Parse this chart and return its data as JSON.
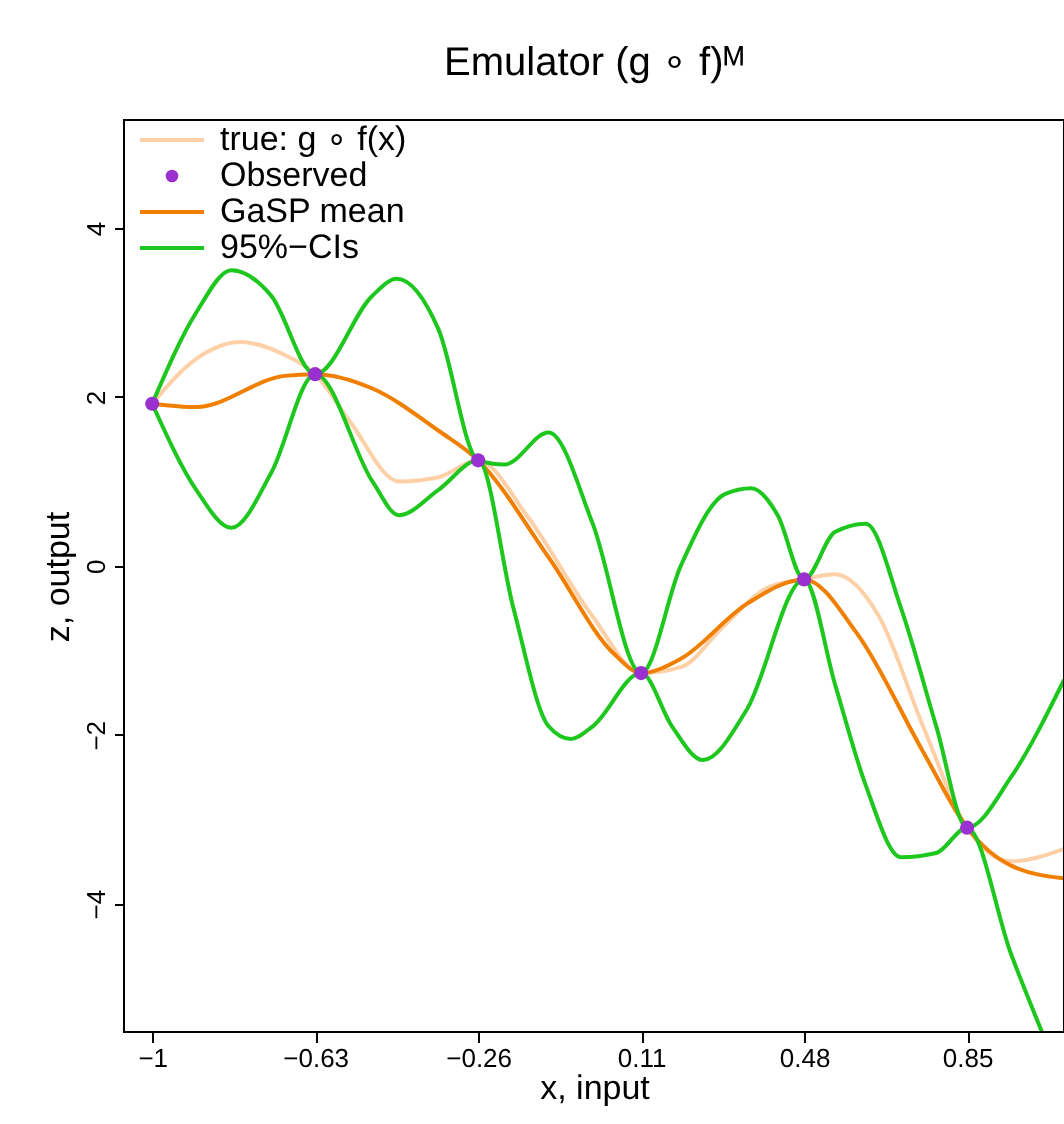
{
  "chart_data": {
    "type": "line",
    "title": "Emulator (g ∘ f)ᴹ",
    "xlabel": "x, input",
    "ylabel": "z, output",
    "xlim": [
      -1.064,
      1.07
    ],
    "ylim": [
      -5.52,
      5.28
    ],
    "xticks": [
      -1,
      -0.63,
      -0.26,
      0.11,
      0.48,
      0.85
    ],
    "yticks": [
      -4,
      -2,
      0,
      2,
      4
    ],
    "grid": false,
    "legend": "top left",
    "line_style": "solid",
    "marker": "none",
    "series": [
      {
        "name": "true: g ∘ f(x)",
        "color": "#fdd0a8",
        "x": [
          -1,
          -0.9,
          -0.8,
          -0.7,
          -0.63,
          -0.55,
          -0.44,
          -0.35,
          -0.26,
          -0.15,
          0.0,
          0.11,
          0.2,
          0.3,
          0.4,
          0.48,
          0.55,
          0.65,
          0.75,
          0.85,
          0.95,
          1.07
        ],
        "values": [
          1.92,
          2.45,
          2.65,
          2.5,
          2.27,
          1.7,
          1.0,
          1.05,
          1.25,
          0.6,
          -0.6,
          -1.27,
          -1.2,
          -0.7,
          -0.25,
          -0.16,
          -0.1,
          -0.6,
          -1.9,
          -3.1,
          -3.5,
          -3.35
        ]
      },
      {
        "name": "Observed",
        "color": "#9b30d0",
        "type": "scatter",
        "marker": "circle",
        "x": [
          -1,
          -0.63,
          -0.26,
          0.11,
          0.48,
          0.85
        ],
        "values": [
          1.92,
          2.27,
          1.25,
          -1.27,
          -0.16,
          -3.1
        ]
      },
      {
        "name": "GaSP mean",
        "color": "#f07f00",
        "x": [
          -1,
          -0.9,
          -0.7,
          -0.63,
          -0.5,
          -0.35,
          -0.26,
          -0.1,
          0.05,
          0.11,
          0.2,
          0.35,
          0.48,
          0.6,
          0.75,
          0.85,
          0.95,
          1.07
        ],
        "values": [
          1.92,
          1.88,
          2.25,
          2.27,
          2.1,
          1.6,
          1.25,
          0.1,
          -1.05,
          -1.27,
          -1.1,
          -0.45,
          -0.16,
          -0.8,
          -2.2,
          -3.1,
          -3.55,
          -3.7
        ]
      },
      {
        "name": "95%−CIs",
        "color": "#1ec71e",
        "x": [
          -1,
          -0.9,
          -0.82,
          -0.73,
          -0.63,
          -0.5,
          -0.445,
          -0.35,
          -0.26,
          -0.2,
          -0.1,
          0.0,
          0.11,
          0.2,
          0.3,
          0.36,
          0.42,
          0.48,
          0.55,
          0.62,
          0.7,
          0.78,
          0.85,
          0.95,
          1.07
        ],
        "values": [
          1.92,
          3.0,
          3.5,
          3.2,
          2.27,
          3.2,
          3.4,
          2.8,
          1.25,
          1.2,
          1.58,
          0.5,
          -1.27,
          0.0,
          0.85,
          0.92,
          0.6,
          -0.16,
          0.4,
          0.5,
          -0.5,
          -1.9,
          -3.1,
          -2.5,
          -1.35
        ]
      },
      {
        "color": "#1ec71e",
        "x": [
          -1,
          -0.9,
          -0.82,
          -0.73,
          -0.63,
          -0.5,
          -0.44,
          -0.35,
          -0.26,
          -0.18,
          -0.1,
          -0.05,
          0.0,
          0.11,
          0.18,
          0.25,
          0.35,
          0.48,
          0.55,
          0.62,
          0.7,
          0.78,
          0.85,
          0.95,
          1.02
        ],
        "values": [
          1.92,
          0.9,
          0.45,
          1.1,
          2.27,
          1.0,
          0.6,
          0.9,
          1.25,
          -0.5,
          -1.9,
          -2.05,
          -1.9,
          -1.27,
          -1.9,
          -2.3,
          -1.7,
          -0.16,
          -1.4,
          -2.6,
          -3.45,
          -3.4,
          -3.1,
          -4.6,
          -5.52
        ]
      }
    ]
  }
}
